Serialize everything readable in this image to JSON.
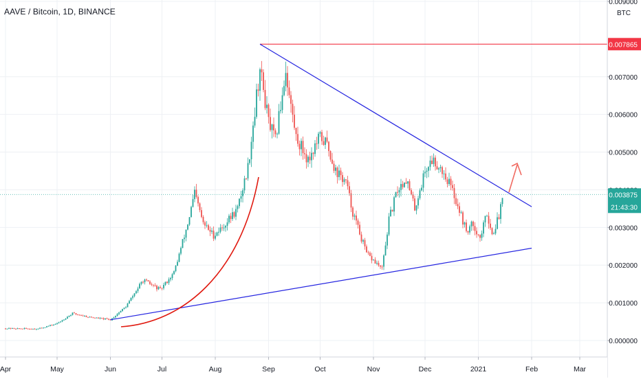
{
  "chart_data": {
    "type": "candlestick",
    "symbol": "AAVE / Bitcoin, 1D, BINANCE",
    "currency": "BTC",
    "ylim": [
      0,
      0.009
    ],
    "y_ticks": [
      "0.000000",
      "0.001000",
      "0.002000",
      "0.003000",
      "0.004000",
      "0.005000",
      "0.006000",
      "0.007000",
      "0.009000"
    ],
    "x_ticks": [
      {
        "label": "Apr",
        "date": "2020-04-01"
      },
      {
        "label": "May",
        "date": "2020-05-01"
      },
      {
        "label": "Jun",
        "date": "2020-06-01"
      },
      {
        "label": "Jul",
        "date": "2020-07-01"
      },
      {
        "label": "Aug",
        "date": "2020-08-01"
      },
      {
        "label": "Sep",
        "date": "2020-09-01"
      },
      {
        "label": "Oct",
        "date": "2020-10-01"
      },
      {
        "label": "Nov",
        "date": "2020-11-01"
      },
      {
        "label": "Dec",
        "date": "2020-12-01"
      },
      {
        "label": "2021",
        "date": "2021-01-01"
      },
      {
        "label": "Feb",
        "date": "2021-02-01"
      },
      {
        "label": "Mar",
        "date": "2021-03-01"
      }
    ],
    "x_range": [
      "2020-04-01",
      "2021-03-27"
    ],
    "price_path": [
      [
        "2020-04-01",
        0.00032
      ],
      [
        "2020-04-20",
        0.00031
      ],
      [
        "2020-05-01",
        0.00045
      ],
      [
        "2020-05-10",
        0.00072
      ],
      [
        "2020-05-20",
        0.00062
      ],
      [
        "2020-06-01",
        0.00055
      ],
      [
        "2020-06-10",
        0.0009
      ],
      [
        "2020-06-20",
        0.0016
      ],
      [
        "2020-06-30",
        0.00135
      ],
      [
        "2020-07-08",
        0.0018
      ],
      [
        "2020-07-16",
        0.0031
      ],
      [
        "2020-07-20",
        0.0039
      ],
      [
        "2020-07-25",
        0.0031
      ],
      [
        "2020-07-31",
        0.0028
      ],
      [
        "2020-08-05",
        0.003
      ],
      [
        "2020-08-14",
        0.0035
      ],
      [
        "2020-08-20",
        0.0046
      ],
      [
        "2020-08-25",
        0.0065
      ],
      [
        "2020-08-27",
        0.0072
      ],
      [
        "2020-09-01",
        0.0058
      ],
      [
        "2020-09-05",
        0.0053
      ],
      [
        "2020-09-11",
        0.0072
      ],
      [
        "2020-09-13",
        0.0065
      ],
      [
        "2020-09-17",
        0.0054
      ],
      [
        "2020-09-24",
        0.0048
      ],
      [
        "2020-10-01",
        0.0054
      ],
      [
        "2020-10-05",
        0.0052
      ],
      [
        "2020-10-10",
        0.0045
      ],
      [
        "2020-10-16",
        0.0042
      ],
      [
        "2020-10-20",
        0.0034
      ],
      [
        "2020-10-28",
        0.0023
      ],
      [
        "2020-11-06",
        0.0019
      ],
      [
        "2020-11-10",
        0.0032
      ],
      [
        "2020-11-15",
        0.004
      ],
      [
        "2020-11-20",
        0.0043
      ],
      [
        "2020-11-25",
        0.0035
      ],
      [
        "2020-12-01",
        0.0045
      ],
      [
        "2020-12-05",
        0.0048
      ],
      [
        "2020-12-10",
        0.0046
      ],
      [
        "2020-12-15",
        0.0042
      ],
      [
        "2020-12-20",
        0.0036
      ],
      [
        "2020-12-25",
        0.0029
      ],
      [
        "2020-12-29",
        0.0031
      ],
      [
        "2021-01-02",
        0.0027
      ],
      [
        "2021-01-06",
        0.0034
      ],
      [
        "2021-01-09",
        0.0028
      ],
      [
        "2021-01-13",
        0.0033
      ],
      [
        "2021-01-15",
        0.00388
      ]
    ],
    "annotations": {
      "horizontal_line": {
        "value": 0.007865,
        "label": "0.007865",
        "color": "#f23645"
      },
      "upper_trendline": {
        "from": [
          "2020-08-27",
          0.007865
        ],
        "to": [
          "2021-02-01",
          0.00355
        ],
        "color": "#2424e0"
      },
      "lower_trendline": {
        "from": [
          "2020-06-01",
          0.00055
        ],
        "to": [
          "2021-02-01",
          0.00245
        ],
        "color": "#2424e0"
      },
      "arc": {
        "color": "#e0190f"
      },
      "arrow": {
        "color": "#f06a61"
      }
    },
    "last_price": {
      "label": "0.003875",
      "value": 0.003875,
      "countdown": "21:43:30",
      "color": "#26a69a"
    },
    "colors": {
      "up": "#26a69a",
      "down": "#ef5350",
      "grid": "#eef0f4",
      "axis_text": "#131722",
      "background": "#ffffff"
    }
  }
}
